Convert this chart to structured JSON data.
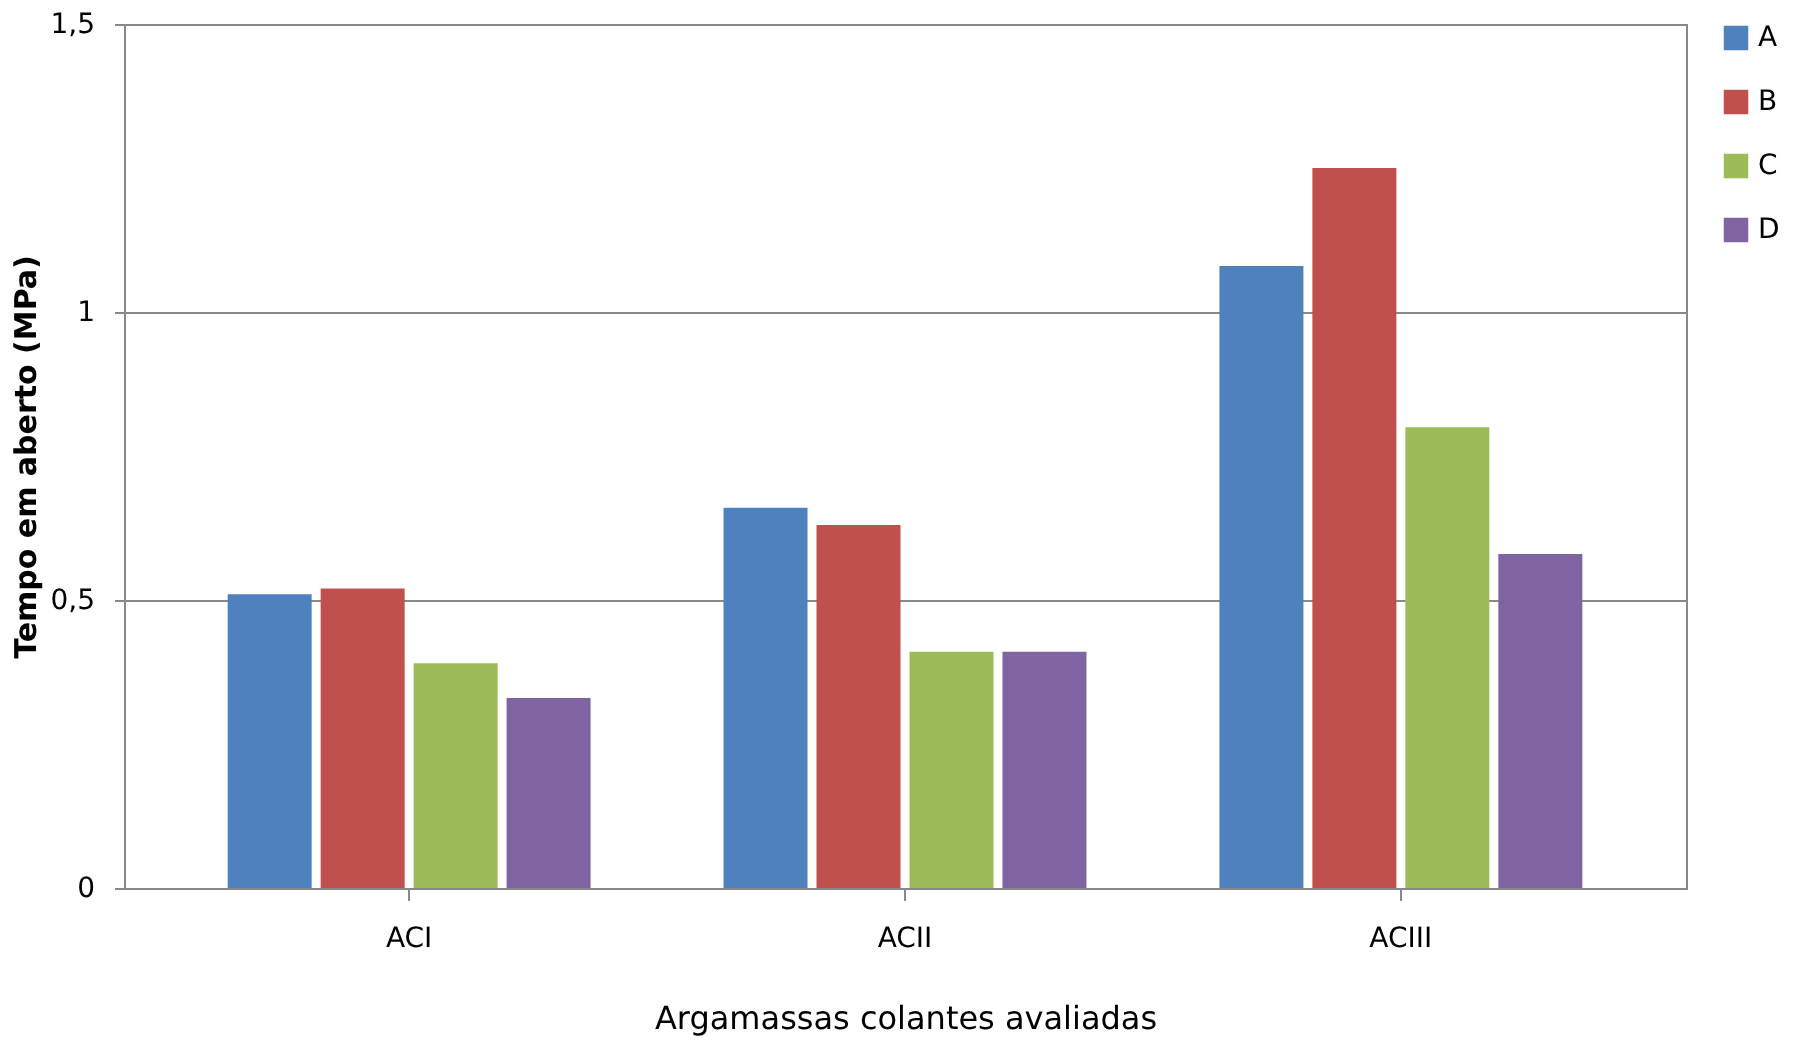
{
  "chart_data": {
    "type": "bar",
    "xlabel": "Argamassas colantes avaliadas",
    "ylabel": "Tempo em aberto (MPa)",
    "categories": [
      "ACI",
      "ACII",
      "ACIII"
    ],
    "series": [
      {
        "name": "A",
        "color": "#4f81bd",
        "values": [
          0.51,
          0.66,
          1.08
        ]
      },
      {
        "name": "B",
        "color": "#c0504d",
        "values": [
          0.52,
          0.63,
          1.25
        ]
      },
      {
        "name": "C",
        "color": "#9bbb59",
        "values": [
          0.39,
          0.41,
          0.8
        ]
      },
      {
        "name": "D",
        "color": "#8064a2",
        "values": [
          0.33,
          0.41,
          0.58
        ]
      }
    ],
    "ylim": [
      0,
      1.5
    ],
    "yticks": [
      0,
      {
        "value": 0.5,
        "label": "0,5"
      },
      1,
      {
        "value": 1.5,
        "label": "1,5"
      }
    ],
    "grid": "y",
    "legend": "right"
  }
}
